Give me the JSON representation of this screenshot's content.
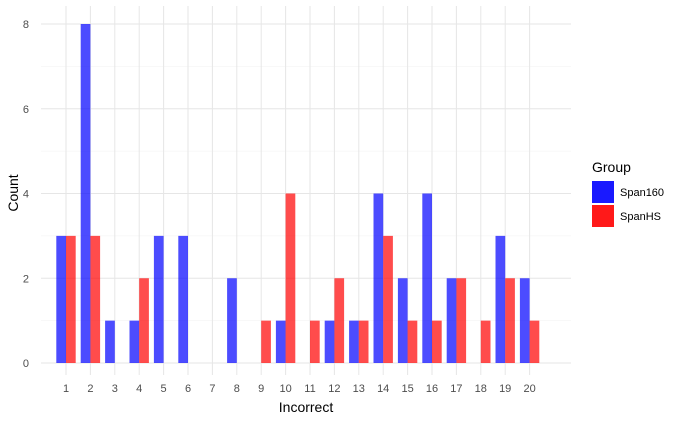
{
  "chart_data": {
    "type": "bar",
    "xlabel": "Incorrect",
    "ylabel": "Count",
    "categories": [
      "1",
      "2",
      "3",
      "4",
      "5",
      "6",
      "7",
      "8",
      "9",
      "10",
      "11",
      "12",
      "13",
      "14",
      "15",
      "16",
      "17",
      "18",
      "19",
      "20"
    ],
    "series": [
      {
        "name": "Span160",
        "color": "#0000FF",
        "values": [
          3,
          8,
          1,
          1,
          3,
          3,
          0,
          2,
          0,
          1,
          0,
          1,
          1,
          4,
          2,
          4,
          2,
          0,
          3,
          2
        ]
      },
      {
        "name": "SpanHS",
        "color": "#FF0000",
        "values": [
          3,
          3,
          0,
          2,
          0,
          0,
          0,
          0,
          1,
          4,
          1,
          2,
          1,
          3,
          1,
          1,
          2,
          1,
          2,
          1
        ]
      }
    ],
    "bar_opacity": 0.7,
    "ylim": [
      0,
      8
    ],
    "yticks": [
      0,
      2,
      4,
      6,
      8
    ],
    "grid": true,
    "legend": {
      "title": "Group",
      "position": "right"
    }
  }
}
